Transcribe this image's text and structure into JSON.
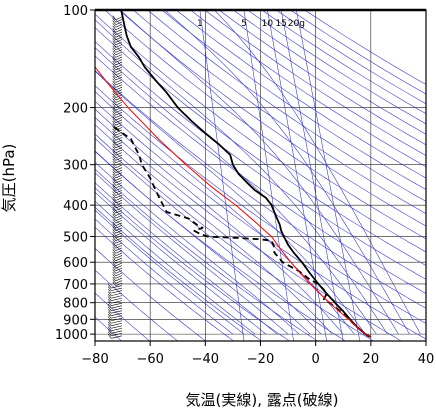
{
  "chart_data": {
    "type": "line",
    "title": "",
    "xlabel": "気温(実線), 露点(破線)",
    "ylabel": "気圧(hPa)",
    "xlim": [
      -80,
      40
    ],
    "ylim_hpa": [
      1050,
      100
    ],
    "y_scale": "log",
    "x_ticks": [
      -80,
      -60,
      -40,
      -20,
      0,
      20,
      40
    ],
    "x_tick_labels": [
      "−80",
      "−60",
      "−40",
      "−20",
      "0",
      "20",
      "40"
    ],
    "y_ticks": [
      100,
      200,
      300,
      400,
      500,
      600,
      700,
      800,
      900,
      1000
    ],
    "y_tick_labels": [
      "100",
      "200",
      "300",
      "400",
      "500",
      "600",
      "700",
      "800",
      "900",
      "1000"
    ],
    "mixing_ratio_labels": [
      {
        "text": "1",
        "temp": -42
      },
      {
        "text": "5",
        "temp": -26
      },
      {
        "text": "10",
        "temp": -17.5
      },
      {
        "text": "15",
        "temp": -12.5
      },
      {
        "text": "20g",
        "temp": -7
      }
    ],
    "grid": true,
    "colors": {
      "temperature": "#000000",
      "dewpoint": "#000000",
      "parcel": "#ff0000",
      "adiabats": "#2b2bd6",
      "grid": "#222222"
    },
    "series": [
      {
        "style": "solid",
        "points": [
          [
            100,
            -70.5
          ],
          [
            105,
            -70
          ],
          [
            110,
            -69.5
          ],
          [
            120,
            -68.5
          ],
          [
            130,
            -67
          ],
          [
            140,
            -64
          ],
          [
            150,
            -62
          ],
          [
            165,
            -58
          ],
          [
            180,
            -54
          ],
          [
            200,
            -50
          ],
          [
            220,
            -45
          ],
          [
            240,
            -40
          ],
          [
            260,
            -35
          ],
          [
            280,
            -31
          ],
          [
            300,
            -30
          ],
          [
            320,
            -28
          ],
          [
            340,
            -25
          ],
          [
            360,
            -22
          ],
          [
            380,
            -18
          ],
          [
            400,
            -16
          ],
          [
            430,
            -14.5
          ],
          [
            460,
            -13
          ],
          [
            480,
            -12.5
          ],
          [
            500,
            -11.5
          ],
          [
            530,
            -10
          ],
          [
            560,
            -8
          ],
          [
            600,
            -5
          ],
          [
            650,
            -2
          ],
          [
            700,
            1
          ],
          [
            750,
            4
          ],
          [
            800,
            7
          ],
          [
            850,
            10
          ],
          [
            900,
            12.5
          ],
          [
            950,
            15
          ],
          [
            1000,
            18
          ],
          [
            1020,
            20
          ]
        ]
      },
      {
        "style": "dashed",
        "points": [
          [
            230,
            -73
          ],
          [
            240,
            -70
          ],
          [
            250,
            -67
          ],
          [
            260,
            -66
          ],
          [
            280,
            -64
          ],
          [
            300,
            -63
          ],
          [
            330,
            -60
          ],
          [
            360,
            -58
          ],
          [
            390,
            -56
          ],
          [
            420,
            -54
          ],
          [
            440,
            -46
          ],
          [
            460,
            -43
          ],
          [
            470,
            -41
          ],
          [
            480,
            -44
          ],
          [
            490,
            -42
          ],
          [
            500,
            -39
          ],
          [
            505,
            -28
          ],
          [
            510,
            -20
          ],
          [
            515,
            -16
          ],
          [
            540,
            -15
          ],
          [
            560,
            -15
          ],
          [
            600,
            -12
          ],
          [
            640,
            -6
          ],
          [
            680,
            -2
          ],
          [
            700,
            1
          ],
          [
            730,
            3
          ],
          [
            750,
            4
          ],
          [
            780,
            3
          ],
          [
            800,
            5
          ],
          [
            850,
            9
          ],
          [
            900,
            12
          ],
          [
            950,
            15
          ],
          [
            1000,
            18
          ],
          [
            1020,
            19.5
          ]
        ]
      },
      {
        "style": "solid-red",
        "points": [
          [
            1020,
            20
          ],
          [
            1000,
            18
          ],
          [
            950,
            15
          ],
          [
            900,
            12
          ],
          [
            850,
            8.5
          ],
          [
            800,
            5
          ],
          [
            750,
            1.5
          ],
          [
            700,
            -2
          ],
          [
            650,
            -5.5
          ],
          [
            600,
            -9
          ],
          [
            550,
            -12.5
          ],
          [
            500,
            -16
          ],
          [
            450,
            -22
          ],
          [
            400,
            -29
          ],
          [
            350,
            -38
          ],
          [
            300,
            -47
          ],
          [
            250,
            -57
          ],
          [
            200,
            -68
          ],
          [
            170,
            -75
          ],
          [
            150,
            -80
          ]
        ]
      }
    ]
  }
}
